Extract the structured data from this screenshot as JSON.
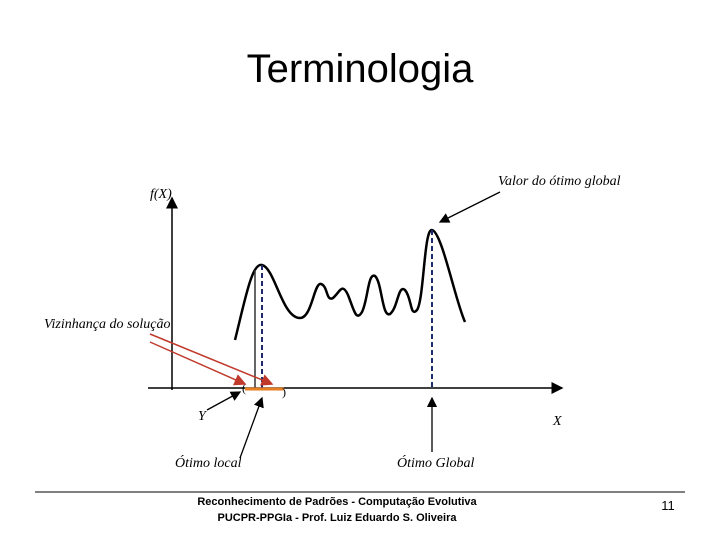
{
  "title": "Terminologia",
  "labels": {
    "fx": "f(X)",
    "global_value": "Valor do ótimo global",
    "neighborhood": "Vizinhança do solução",
    "paren_open": "(",
    "paren_close": ")",
    "y": "Y",
    "x": "X",
    "local_opt": "Ótimo local",
    "global_opt": "Ótimo Global"
  },
  "footer": {
    "line1": "Reconhecimento de Padrões - Computação Evolutiva",
    "line2": "PUCPR-PPGIa - Prof. Luiz Eduardo S. Oliveira",
    "page": "11"
  }
}
